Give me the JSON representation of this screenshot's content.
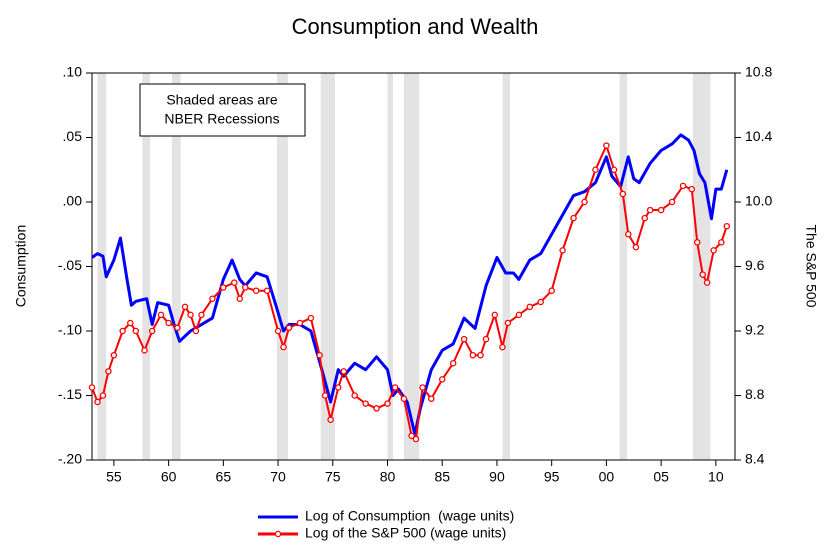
{
  "chart_data": {
    "type": "line",
    "title": "Consumption and Wealth",
    "ylabel": "Consumption",
    "y2label": "The S&P 500",
    "annotation": [
      "Shaded areas are",
      "NBER Recessions"
    ],
    "xlim": [
      1953,
      2011.75
    ],
    "xticks": [
      {
        "value": 1955,
        "label": "55"
      },
      {
        "value": 1960,
        "label": "60"
      },
      {
        "value": 1965,
        "label": "65"
      },
      {
        "value": 1970,
        "label": "70"
      },
      {
        "value": 1975,
        "label": "75"
      },
      {
        "value": 1980,
        "label": "80"
      },
      {
        "value": 1985,
        "label": "85"
      },
      {
        "value": 1990,
        "label": "90"
      },
      {
        "value": 1995,
        "label": "95"
      },
      {
        "value": 2000,
        "label": "00"
      },
      {
        "value": 2005,
        "label": "05"
      },
      {
        "value": 2010,
        "label": "10"
      }
    ],
    "ylim": [
      -0.2,
      0.1
    ],
    "yticks": [
      {
        "value": 0.1,
        "label": ".10"
      },
      {
        "value": 0.05,
        "label": ".05"
      },
      {
        "value": 0,
        "label": ".00"
      },
      {
        "value": -0.05,
        "label": "-.05"
      },
      {
        "value": -0.1,
        "label": "-.10"
      },
      {
        "value": -0.15,
        "label": "-.15"
      },
      {
        "value": -0.2,
        "label": "-.20"
      }
    ],
    "y2lim": [
      8.4,
      10.8
    ],
    "y2ticks": [
      10.8,
      10.4,
      {
        "value": 10,
        "label": "10.0"
      },
      9.6,
      9.2,
      8.8,
      8.4
    ],
    "recessions": [
      [
        1953.5,
        1954.3
      ],
      [
        1957.6,
        1958.3
      ],
      [
        1960.3,
        1961.1
      ],
      [
        1969.9,
        1970.9
      ],
      [
        1973.9,
        1975.2
      ],
      [
        1980.0,
        1980.5
      ],
      [
        1981.5,
        1982.9
      ],
      [
        1990.5,
        1991.2
      ],
      [
        2001.2,
        2001.9
      ],
      [
        2007.9,
        2009.5
      ]
    ],
    "recession_color": "#e3e3e3",
    "series": [
      {
        "name": "Log of Consumption  (wage units)",
        "color": "#0000ff",
        "axis": "y",
        "markers": false,
        "x": [
          1953,
          1953.5,
          1954,
          1954.3,
          1955,
          1955.6,
          1956.2,
          1956.6,
          1957,
          1958,
          1958.5,
          1959,
          1960,
          1960.5,
          1961,
          1962,
          1963,
          1964,
          1965,
          1965.8,
          1966.5,
          1967,
          1968,
          1969,
          1969.8,
          1970.5,
          1971,
          1972,
          1973,
          1974,
          1974.8,
          1975.5,
          1976,
          1977,
          1978,
          1979,
          1980,
          1980.5,
          1981,
          1981.8,
          1982.5,
          1983,
          1984,
          1985,
          1986,
          1987,
          1988,
          1989,
          1990,
          1990.8,
          1991.5,
          1992,
          1993,
          1994,
          1995,
          1996,
          1997,
          1998,
          1999,
          2000,
          2000.5,
          2001.3,
          2002,
          2002.5,
          2003,
          2004,
          2005,
          2006,
          2006.8,
          2007.5,
          2008,
          2008.5,
          2009,
          2009.6,
          2010,
          2010.5,
          2011
        ],
        "values": [
          -0.043,
          -0.04,
          -0.042,
          -0.058,
          -0.045,
          -0.028,
          -0.06,
          -0.08,
          -0.077,
          -0.075,
          -0.095,
          -0.078,
          -0.08,
          -0.095,
          -0.108,
          -0.1,
          -0.095,
          -0.09,
          -0.06,
          -0.045,
          -0.06,
          -0.065,
          -0.055,
          -0.058,
          -0.08,
          -0.1,
          -0.095,
          -0.095,
          -0.1,
          -0.13,
          -0.155,
          -0.13,
          -0.135,
          -0.125,
          -0.13,
          -0.12,
          -0.13,
          -0.15,
          -0.145,
          -0.155,
          -0.18,
          -0.16,
          -0.13,
          -0.115,
          -0.11,
          -0.09,
          -0.098,
          -0.065,
          -0.043,
          -0.055,
          -0.055,
          -0.06,
          -0.045,
          -0.04,
          -0.025,
          -0.01,
          0.005,
          0.008,
          0.015,
          0.035,
          0.02,
          0.012,
          0.035,
          0.018,
          0.015,
          0.03,
          0.04,
          0.045,
          0.052,
          0.048,
          0.04,
          0.022,
          0.015,
          -0.013,
          0.01,
          0.01,
          0.025
        ]
      },
      {
        "name": "Log of the S&P 500 (wage units)",
        "color": "#ff0000",
        "axis": "y2",
        "markers": true,
        "x": [
          1953,
          1953.5,
          1954,
          1954.5,
          1955,
          1955.8,
          1956.5,
          1957,
          1957.8,
          1958.5,
          1959.3,
          1960,
          1960.8,
          1961.5,
          1962,
          1962.5,
          1963,
          1964,
          1965,
          1966,
          1966.5,
          1967,
          1968,
          1969,
          1970,
          1970.5,
          1971,
          1972,
          1973,
          1973.8,
          1974.3,
          1974.8,
          1975.5,
          1976,
          1977,
          1978,
          1979,
          1980,
          1980.7,
          1981.5,
          1982.2,
          1982.6,
          1983.2,
          1984,
          1985,
          1986,
          1987,
          1987.8,
          1988.5,
          1989,
          1989.8,
          1990.5,
          1991,
          1992,
          1993,
          1994,
          1995,
          1996,
          1997,
          1998,
          1999,
          2000,
          2000.7,
          2001.5,
          2002,
          2002.7,
          2003.5,
          2004,
          2005,
          2006,
          2007,
          2007.8,
          2008.3,
          2008.8,
          2009.2,
          2009.8,
          2010.5,
          2011
        ],
        "values": [
          8.85,
          8.76,
          8.8,
          8.95,
          9.05,
          9.2,
          9.25,
          9.2,
          9.08,
          9.2,
          9.3,
          9.25,
          9.22,
          9.35,
          9.3,
          9.2,
          9.3,
          9.4,
          9.47,
          9.5,
          9.4,
          9.47,
          9.45,
          9.45,
          9.2,
          9.1,
          9.22,
          9.25,
          9.28,
          9.05,
          8.8,
          8.65,
          8.85,
          8.95,
          8.8,
          8.75,
          8.72,
          8.75,
          8.85,
          8.78,
          8.55,
          8.53,
          8.85,
          8.78,
          8.9,
          9.0,
          9.15,
          9.05,
          9.05,
          9.15,
          9.3,
          9.1,
          9.25,
          9.3,
          9.35,
          9.38,
          9.45,
          9.7,
          9.9,
          10.0,
          10.2,
          10.35,
          10.2,
          10.05,
          9.8,
          9.72,
          9.9,
          9.95,
          9.95,
          10.0,
          10.1,
          10.08,
          9.75,
          9.55,
          9.5,
          9.7,
          9.75,
          9.85
        ]
      }
    ]
  }
}
